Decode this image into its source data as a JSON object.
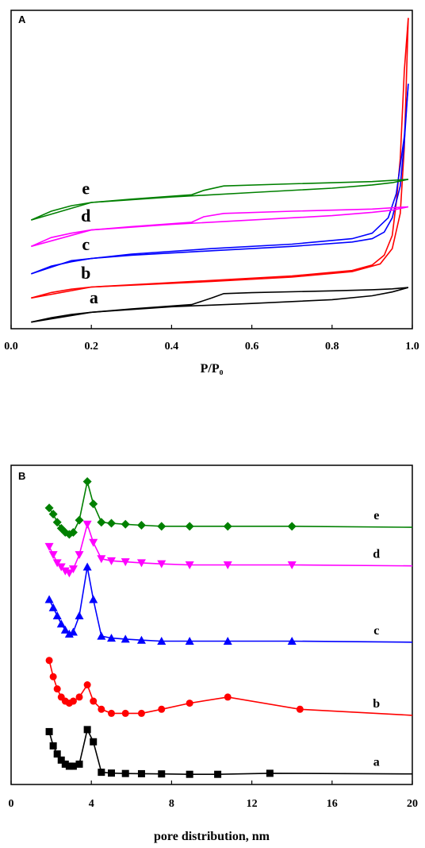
{
  "chart_data": [
    {
      "panel": "A",
      "type": "line",
      "xlabel": "P/P₀",
      "ylabel": "",
      "xlim": [
        0,
        1.0
      ],
      "x_ticks": [
        "0.0",
        "0.2",
        "0.4",
        "0.6",
        "0.8",
        "1.0"
      ],
      "y_ticks_shown": false,
      "grid": false,
      "series": [
        {
          "name": "a",
          "color": "#000000",
          "adsorption": [
            [
              0.05,
              1.0
            ],
            [
              0.1,
              5.0
            ],
            [
              0.15,
              8.0
            ],
            [
              0.2,
              10.0
            ],
            [
              0.3,
              13.0
            ],
            [
              0.45,
              17.0
            ],
            [
              0.5,
              23.0
            ],
            [
              0.53,
              27.0
            ],
            [
              0.6,
              27.8
            ],
            [
              0.8,
              29.5
            ],
            [
              0.9,
              30.5
            ],
            [
              0.95,
              31.3
            ],
            [
              0.99,
              32.5
            ]
          ],
          "desorption": [
            [
              0.05,
              1.0
            ],
            [
              0.2,
              10.0
            ],
            [
              0.4,
              15.0
            ],
            [
              0.6,
              18.0
            ],
            [
              0.8,
              21.5
            ],
            [
              0.9,
              25.0
            ],
            [
              0.95,
              28.5
            ],
            [
              0.99,
              32.5
            ]
          ]
        },
        {
          "name": "b",
          "color": "#ff0000",
          "adsorption": [
            [
              0.05,
              23.0
            ],
            [
              0.1,
              28.0
            ],
            [
              0.15,
              31.0
            ],
            [
              0.2,
              33.0
            ],
            [
              0.3,
              35.0
            ],
            [
              0.5,
              39.0
            ],
            [
              0.7,
              43.0
            ],
            [
              0.85,
              48.0
            ],
            [
              0.9,
              53.0
            ],
            [
              0.93,
              62.0
            ],
            [
              0.95,
              80.0
            ],
            [
              0.96,
              110.0
            ],
            [
              0.97,
              150.0
            ],
            [
              0.98,
              230.0
            ],
            [
              0.99,
              278.0
            ]
          ],
          "desorption": [
            [
              0.05,
              23.0
            ],
            [
              0.2,
              33.0
            ],
            [
              0.5,
              38.0
            ],
            [
              0.7,
              42.0
            ],
            [
              0.85,
              47.0
            ],
            [
              0.92,
              54.0
            ],
            [
              0.95,
              68.0
            ],
            [
              0.97,
              100.0
            ],
            [
              0.98,
              160.0
            ],
            [
              0.99,
              278.0
            ]
          ]
        },
        {
          "name": "c",
          "color": "#0000ff",
          "adsorption": [
            [
              0.05,
              45.0
            ],
            [
              0.1,
              52.0
            ],
            [
              0.15,
              56.0
            ],
            [
              0.2,
              59.0
            ],
            [
              0.3,
              62.0
            ],
            [
              0.5,
              66.0
            ],
            [
              0.7,
              70.0
            ],
            [
              0.85,
              74.0
            ],
            [
              0.9,
              77.0
            ],
            [
              0.93,
              83.0
            ],
            [
              0.95,
              96.0
            ],
            [
              0.97,
              125.0
            ],
            [
              0.98,
              165.0
            ],
            [
              0.99,
              218.0
            ]
          ],
          "desorption": [
            [
              0.05,
              45.0
            ],
            [
              0.15,
              57.0
            ],
            [
              0.3,
              63.0
            ],
            [
              0.5,
              68.0
            ],
            [
              0.7,
              72.0
            ],
            [
              0.85,
              77.0
            ],
            [
              0.9,
              82.0
            ],
            [
              0.94,
              96.0
            ],
            [
              0.96,
              118.0
            ],
            [
              0.98,
              170.0
            ],
            [
              0.99,
              218.0
            ]
          ]
        },
        {
          "name": "d",
          "color": "#ff00ff",
          "adsorption": [
            [
              0.05,
              70.0
            ],
            [
              0.1,
              78.0
            ],
            [
              0.15,
              82.0
            ],
            [
              0.2,
              85.0
            ],
            [
              0.3,
              88.0
            ],
            [
              0.45,
              92.0
            ],
            [
              0.48,
              97.0
            ],
            [
              0.53,
              100.0
            ],
            [
              0.7,
              102.0
            ],
            [
              0.9,
              104.0
            ],
            [
              0.99,
              106.0
            ]
          ],
          "desorption": [
            [
              0.05,
              70.0
            ],
            [
              0.2,
              85.0
            ],
            [
              0.4,
              90.0
            ],
            [
              0.6,
              94.0
            ],
            [
              0.8,
              98.0
            ],
            [
              0.9,
              101.0
            ],
            [
              0.95,
              103.0
            ],
            [
              0.99,
              106.0
            ]
          ]
        },
        {
          "name": "e",
          "color": "#008000",
          "adsorption": [
            [
              0.05,
              94.0
            ],
            [
              0.1,
              102.0
            ],
            [
              0.15,
              107.0
            ],
            [
              0.2,
              110.0
            ],
            [
              0.3,
              113.0
            ],
            [
              0.45,
              117.0
            ],
            [
              0.48,
              121.0
            ],
            [
              0.53,
              125.0
            ],
            [
              0.7,
              127.0
            ],
            [
              0.9,
              129.0
            ],
            [
              0.99,
              131.0
            ]
          ],
          "desorption": [
            [
              0.05,
              94.0
            ],
            [
              0.2,
              110.0
            ],
            [
              0.4,
              115.0
            ],
            [
              0.6,
              119.0
            ],
            [
              0.8,
              123.0
            ],
            [
              0.9,
              126.0
            ],
            [
              0.95,
              128.0
            ],
            [
              0.99,
              131.0
            ]
          ]
        }
      ]
    },
    {
      "panel": "B",
      "type": "line",
      "xlabel": "pore distribution, nm",
      "ylabel": "",
      "xlim": [
        0,
        20
      ],
      "x_ticks": [
        "0",
        "4",
        "8",
        "12",
        "16",
        "20"
      ],
      "y_ticks_shown": false,
      "grid": false,
      "series": [
        {
          "name": "a",
          "color": "#000000",
          "marker": "square",
          "points": [
            [
              1.9,
              21
            ],
            [
              2.1,
              14
            ],
            [
              2.3,
              10
            ],
            [
              2.5,
              7
            ],
            [
              2.7,
              5
            ],
            [
              2.9,
              4
            ],
            [
              3.1,
              4
            ],
            [
              3.4,
              5
            ],
            [
              3.8,
              22
            ],
            [
              4.1,
              16
            ],
            [
              4.5,
              1
            ],
            [
              5.0,
              0.6
            ],
            [
              5.7,
              0.4
            ],
            [
              6.5,
              0.3
            ],
            [
              7.5,
              0.2
            ],
            [
              8.9,
              0
            ],
            [
              10.3,
              0
            ],
            [
              12.9,
              0.5
            ],
            [
              20.0,
              0.2
            ]
          ]
        },
        {
          "name": "b",
          "color": "#ff0000",
          "marker": "circle",
          "points": [
            [
              1.9,
              56
            ],
            [
              2.1,
              48
            ],
            [
              2.3,
              42
            ],
            [
              2.5,
              38
            ],
            [
              2.7,
              36
            ],
            [
              2.9,
              35
            ],
            [
              3.1,
              36
            ],
            [
              3.4,
              38
            ],
            [
              3.8,
              44
            ],
            [
              4.1,
              36
            ],
            [
              4.5,
              32
            ],
            [
              5.0,
              30
            ],
            [
              5.7,
              30
            ],
            [
              6.5,
              30
            ],
            [
              7.5,
              32
            ],
            [
              8.9,
              35
            ],
            [
              10.8,
              38
            ],
            [
              14.4,
              32
            ],
            [
              20.0,
              29
            ]
          ]
        },
        {
          "name": "c",
          "color": "#0000ff",
          "marker": "triangle-up",
          "points": [
            [
              1.9,
              86
            ],
            [
              2.1,
              82
            ],
            [
              2.3,
              78
            ],
            [
              2.5,
              74
            ],
            [
              2.7,
              71
            ],
            [
              2.9,
              69
            ],
            [
              3.1,
              70
            ],
            [
              3.4,
              78
            ],
            [
              3.8,
              102
            ],
            [
              4.1,
              86
            ],
            [
              4.5,
              68
            ],
            [
              5.0,
              67
            ],
            [
              5.7,
              66.5
            ],
            [
              6.5,
              66
            ],
            [
              7.5,
              65.5
            ],
            [
              8.9,
              65.5
            ],
            [
              10.8,
              65.5
            ],
            [
              14.0,
              65.5
            ],
            [
              20.0,
              65
            ]
          ]
        },
        {
          "name": "d",
          "color": "#ff00ff",
          "marker": "triangle-down",
          "points": [
            [
              1.9,
              112
            ],
            [
              2.1,
              108
            ],
            [
              2.3,
              104
            ],
            [
              2.5,
              102
            ],
            [
              2.7,
              100
            ],
            [
              2.9,
              99
            ],
            [
              3.1,
              101
            ],
            [
              3.4,
              108
            ],
            [
              3.8,
              123
            ],
            [
              4.1,
              114
            ],
            [
              4.5,
              106
            ],
            [
              5.0,
              105
            ],
            [
              5.7,
              104.5
            ],
            [
              6.5,
              104
            ],
            [
              7.5,
              103.5
            ],
            [
              8.9,
              103
            ],
            [
              10.8,
              103
            ],
            [
              14.0,
              103
            ],
            [
              20.0,
              102.5
            ]
          ]
        },
        {
          "name": "e",
          "color": "#008000",
          "marker": "diamond",
          "points": [
            [
              1.9,
              131
            ],
            [
              2.1,
              128
            ],
            [
              2.3,
              124
            ],
            [
              2.5,
              121
            ],
            [
              2.7,
              119
            ],
            [
              2.9,
              118
            ],
            [
              3.1,
              119
            ],
            [
              3.4,
              125
            ],
            [
              3.8,
              144
            ],
            [
              4.1,
              133
            ],
            [
              4.5,
              124
            ],
            [
              5.0,
              123.5
            ],
            [
              5.7,
              123
            ],
            [
              6.5,
              122.5
            ],
            [
              7.5,
              122
            ],
            [
              8.9,
              122
            ],
            [
              10.8,
              122
            ],
            [
              14.0,
              122
            ],
            [
              20.0,
              121.5
            ]
          ]
        }
      ]
    }
  ]
}
